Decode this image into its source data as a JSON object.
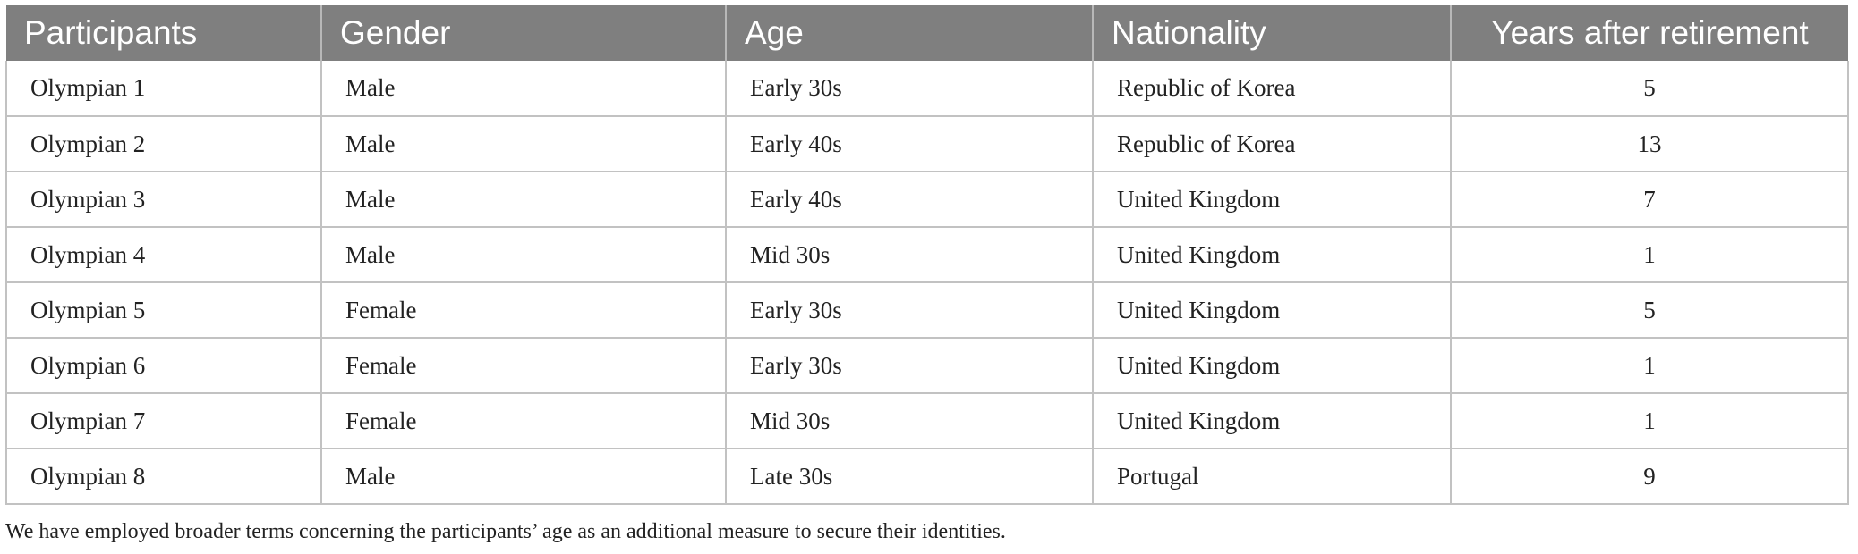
{
  "table": {
    "headers": [
      "Participants",
      "Gender",
      "Age",
      "Nationality",
      "Years after retirement"
    ],
    "rows": [
      [
        "Olympian 1",
        "Male",
        "Early 30s",
        "Republic of Korea",
        "5"
      ],
      [
        "Olympian 2",
        "Male",
        "Early 40s",
        "Republic of Korea",
        "13"
      ],
      [
        "Olympian 3",
        "Male",
        "Early 40s",
        "United Kingdom",
        "7"
      ],
      [
        "Olympian 4",
        "Male",
        "Mid 30s",
        "United Kingdom",
        "1"
      ],
      [
        "Olympian 5",
        "Female",
        "Early 30s",
        "United Kingdom",
        "5"
      ],
      [
        "Olympian 6",
        "Female",
        "Early 30s",
        "United Kingdom",
        "1"
      ],
      [
        "Olympian 7",
        "Female",
        "Mid 30s",
        "United Kingdom",
        "1"
      ],
      [
        "Olympian 8",
        "Male",
        "Late 30s",
        "Portugal",
        "9"
      ]
    ]
  },
  "footnote": "We have employed broader terms concerning the participants’ age as an additional measure to secure their identities.",
  "colors": {
    "header_bg": "#7f7f7f",
    "header_text": "#ffffff",
    "grid": "#c2c2c2"
  }
}
